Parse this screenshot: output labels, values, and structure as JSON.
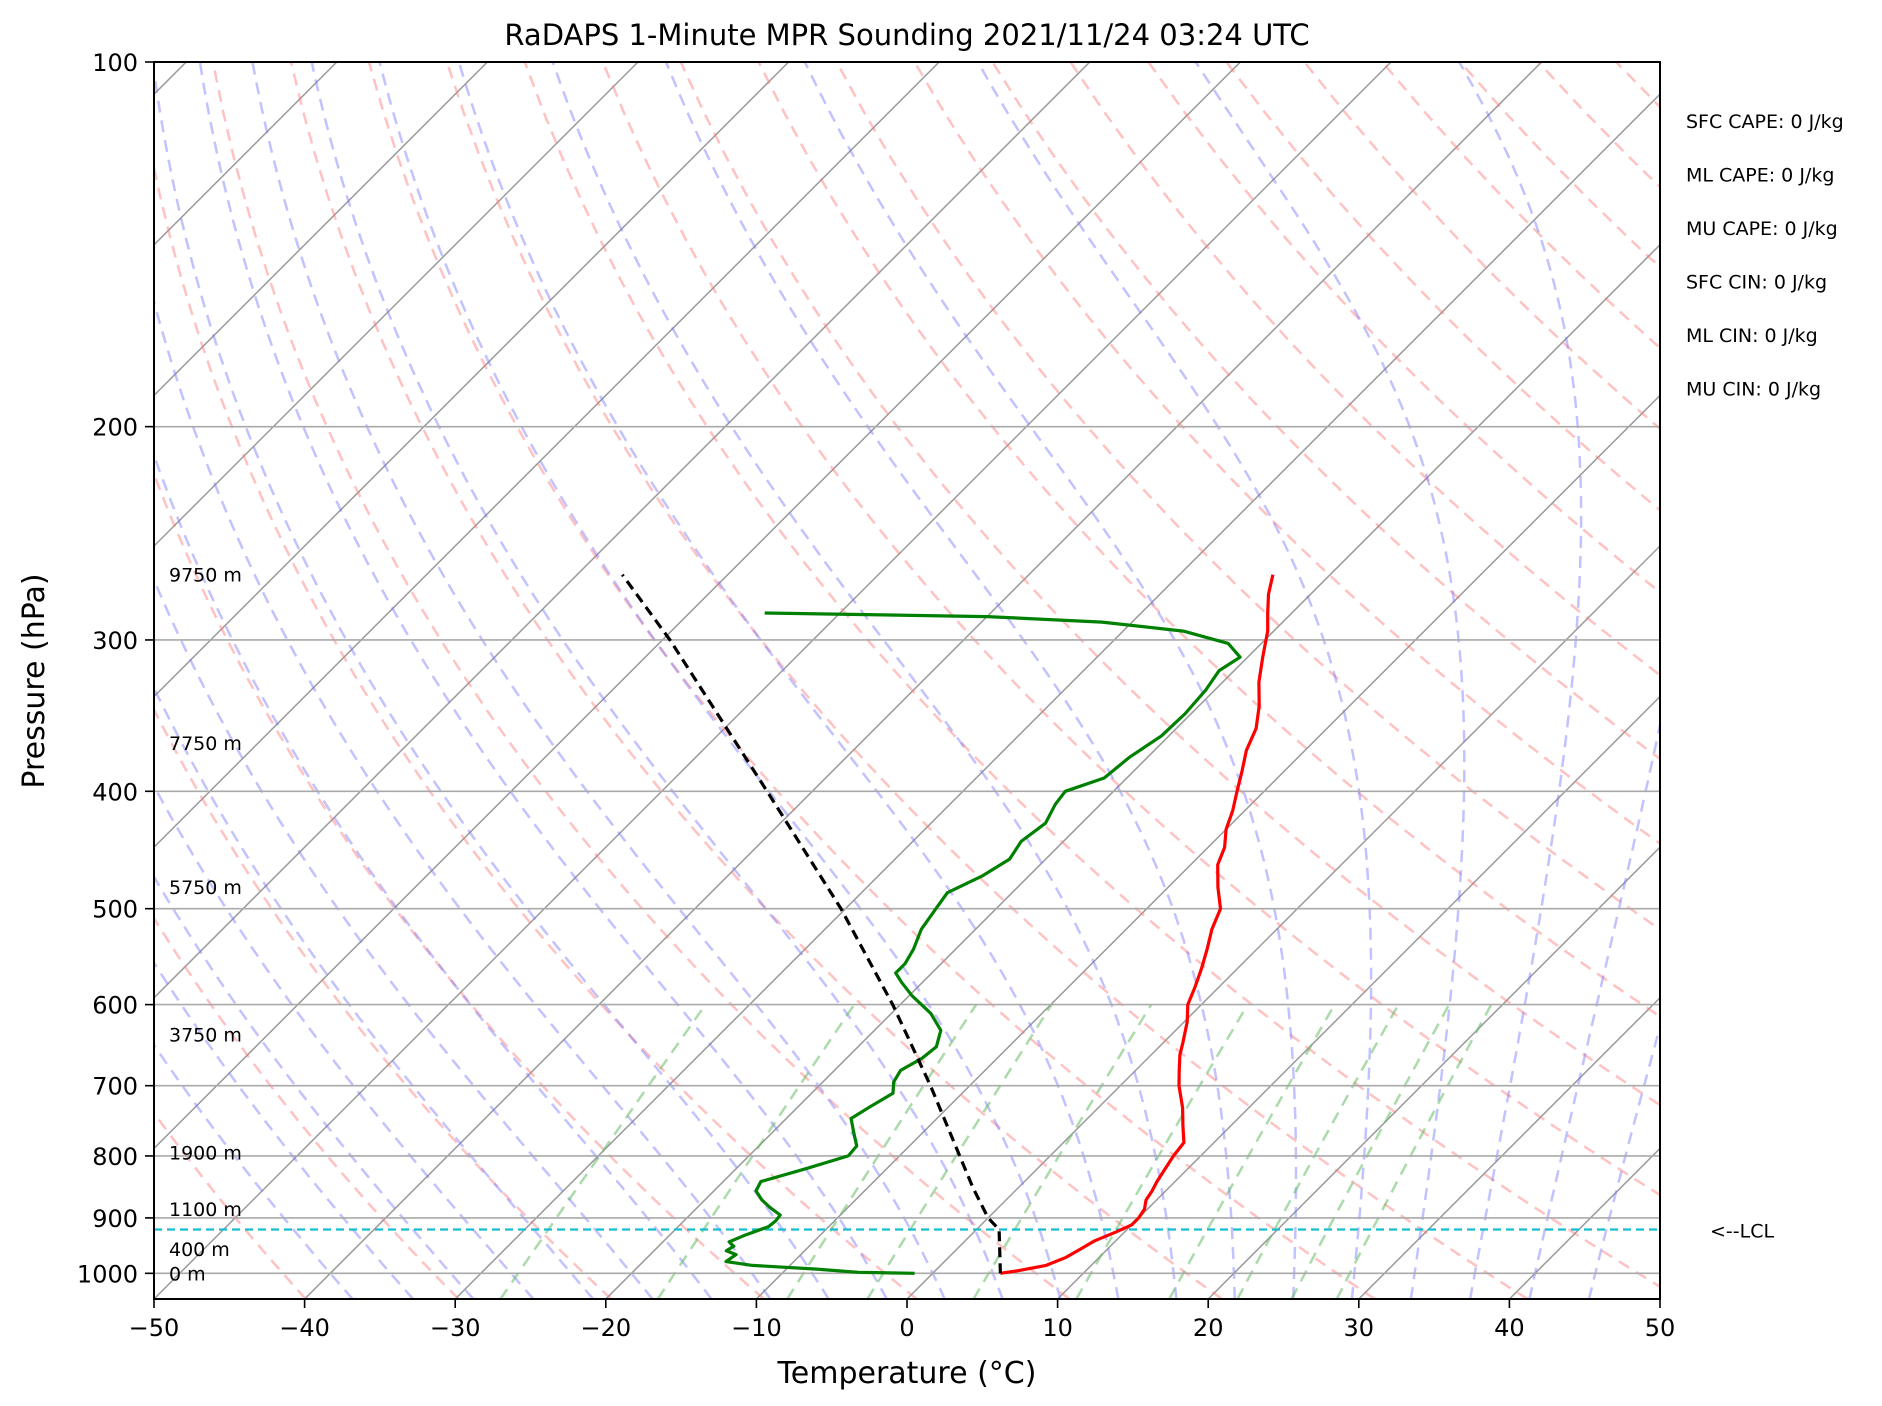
{
  "chart_data": {
    "type": "line",
    "subtype": "skew-T log-P sounding",
    "title": "RaDAPS 1-Minute MPR Sounding 2021/11/24 03:24 UTC",
    "xlabel": "Temperature (°C)",
    "ylabel": "Pressure (hPa)",
    "xlim": [
      -50,
      50
    ],
    "ylim": [
      1050,
      100
    ],
    "y_scale": "log",
    "grid": true,
    "x_ticks": [
      -50,
      -40,
      -30,
      -20,
      -10,
      0,
      10,
      20,
      30,
      40,
      50
    ],
    "x_tick_labels": [
      "−50",
      "−40",
      "−30",
      "−20",
      "−10",
      "0",
      "10",
      "20",
      "30",
      "40",
      "50"
    ],
    "y_ticks": [
      100,
      200,
      300,
      400,
      500,
      600,
      700,
      800,
      900,
      1000
    ],
    "y_tick_labels": [
      "100",
      "200",
      "300",
      "400",
      "500",
      "600",
      "700",
      "800",
      "900",
      "1000"
    ],
    "height_labels": [
      {
        "p": 265,
        "text": "9750 m"
      },
      {
        "p": 365,
        "text": "7750 m"
      },
      {
        "p": 480,
        "text": "5750 m"
      },
      {
        "p": 635,
        "text": "3750 m"
      },
      {
        "p": 795,
        "text": "1900 m"
      },
      {
        "p": 885,
        "text": "1100 m"
      },
      {
        "p": 955,
        "text": "400 m"
      },
      {
        "p": 1000,
        "text": "0 m"
      }
    ],
    "lcl": {
      "pressure": 920,
      "label": "<--LCL",
      "color": "#17becf"
    },
    "indices": [
      "SFC CAPE: 0 J/kg",
      "ML CAPE: 0 J/kg",
      "MU CAPE: 0 J/kg",
      "SFC CIN: 0 J/kg",
      "ML CIN: 0 J/kg",
      "MU CIN: 0 J/kg"
    ],
    "series": [
      {
        "key": "temperature",
        "color": "#ff0000",
        "points": [
          [
            1000,
            4.5
          ],
          [
            995,
            5.5
          ],
          [
            985,
            7.0
          ],
          [
            970,
            7.8
          ],
          [
            955,
            8.2
          ],
          [
            940,
            8.6
          ],
          [
            925,
            9.4
          ],
          [
            912,
            10.0
          ],
          [
            900,
            10.0
          ],
          [
            885,
            9.8
          ],
          [
            870,
            9.3
          ],
          [
            855,
            9.1
          ],
          [
            840,
            8.8
          ],
          [
            820,
            8.5
          ],
          [
            800,
            8.2
          ],
          [
            780,
            8.0
          ],
          [
            755,
            6.8
          ],
          [
            730,
            5.6
          ],
          [
            700,
            3.9
          ],
          [
            680,
            2.9
          ],
          [
            660,
            1.9
          ],
          [
            645,
            1.3
          ],
          [
            620,
            0.2
          ],
          [
            600,
            -0.9
          ],
          [
            580,
            -1.6
          ],
          [
            560,
            -2.4
          ],
          [
            540,
            -3.3
          ],
          [
            520,
            -4.3
          ],
          [
            500,
            -5.1
          ],
          [
            480,
            -6.7
          ],
          [
            460,
            -8.2
          ],
          [
            445,
            -8.9
          ],
          [
            430,
            -10.0
          ],
          [
            415,
            -10.8
          ],
          [
            400,
            -11.8
          ],
          [
            385,
            -12.8
          ],
          [
            370,
            -13.9
          ],
          [
            355,
            -14.7
          ],
          [
            340,
            -16.0
          ],
          [
            325,
            -17.6
          ],
          [
            310,
            -19.0
          ],
          [
            295,
            -20.4
          ],
          [
            285,
            -21.6
          ],
          [
            275,
            -22.8
          ],
          [
            265,
            -23.8
          ]
        ]
      },
      {
        "key": "dewpoint",
        "color": "#008000",
        "points": [
          [
            1000,
            -1.2
          ],
          [
            998,
            -5.0
          ],
          [
            992,
            -8.0
          ],
          [
            985,
            -12.5
          ],
          [
            978,
            -14.5
          ],
          [
            965,
            -14.3
          ],
          [
            958,
            -15.2
          ],
          [
            950,
            -15.0
          ],
          [
            942,
            -15.6
          ],
          [
            930,
            -15.0
          ],
          [
            915,
            -14.0
          ],
          [
            905,
            -13.9
          ],
          [
            895,
            -14.0
          ],
          [
            882,
            -15.2
          ],
          [
            870,
            -16.2
          ],
          [
            855,
            -17.2
          ],
          [
            840,
            -17.5
          ],
          [
            820,
            -15.4
          ],
          [
            800,
            -13.4
          ],
          [
            785,
            -13.5
          ],
          [
            765,
            -14.6
          ],
          [
            745,
            -15.7
          ],
          [
            728,
            -15.2
          ],
          [
            710,
            -14.6
          ],
          [
            695,
            -15.3
          ],
          [
            680,
            -15.6
          ],
          [
            665,
            -15.0
          ],
          [
            650,
            -14.8
          ],
          [
            630,
            -15.6
          ],
          [
            610,
            -17.4
          ],
          [
            590,
            -19.8
          ],
          [
            575,
            -21.4
          ],
          [
            565,
            -22.4
          ],
          [
            555,
            -22.4
          ],
          [
            540,
            -22.8
          ],
          [
            520,
            -23.6
          ],
          [
            500,
            -24.0
          ],
          [
            485,
            -24.3
          ],
          [
            470,
            -23.1
          ],
          [
            455,
            -22.4
          ],
          [
            440,
            -22.8
          ],
          [
            425,
            -22.4
          ],
          [
            410,
            -23.0
          ],
          [
            400,
            -23.2
          ],
          [
            390,
            -21.5
          ],
          [
            375,
            -21.2
          ],
          [
            360,
            -20.5
          ],
          [
            345,
            -20.4
          ],
          [
            330,
            -20.6
          ],
          [
            318,
            -21.0
          ],
          [
            310,
            -20.5
          ],
          [
            302,
            -22.2
          ],
          [
            295,
            -26.0
          ],
          [
            290,
            -32.0
          ],
          [
            287,
            -40.0
          ],
          [
            285,
            -55.0
          ]
        ]
      },
      {
        "key": "parcel",
        "color": "#000000",
        "dashed": true,
        "points": [
          [
            1000,
            4.5
          ],
          [
            920,
            1.5
          ],
          [
            900,
            0.0
          ],
          [
            850,
            -3.0
          ],
          [
            800,
            -6.0
          ],
          [
            700,
            -12.6
          ],
          [
            600,
            -20.5
          ],
          [
            500,
            -30.3
          ],
          [
            400,
            -43.0
          ],
          [
            300,
            -59.5
          ],
          [
            265,
            -67.0
          ]
        ]
      }
    ],
    "reference_lines": {
      "dry_adiabat_color": "#ff7777",
      "moist_adiabat_color": "#7777ff",
      "mixing_ratio_color": "#66bb66",
      "isotherm_color": "#999999"
    }
  }
}
